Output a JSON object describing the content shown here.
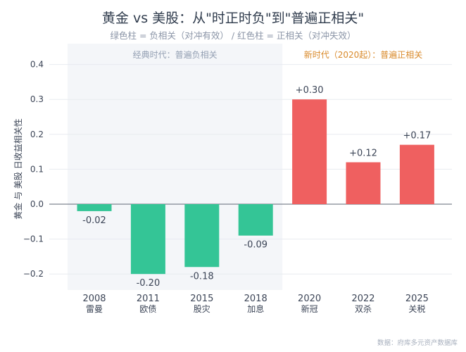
{
  "chart_data": {
    "type": "bar",
    "title": "黄金 vs 美股：从\"时正时负\"到\"普遍正相关\"",
    "subtitle": "绿色柱 = 负相关（对冲有效） / 红色柱 = 正相关（对冲失效）",
    "ylabel": "黄金 与 美股 日收益相关性",
    "categories": [
      "2008",
      "2011",
      "2015",
      "2018",
      "2020",
      "2022",
      "2025"
    ],
    "category_sublabels": [
      "雷曼",
      "欧债",
      "股灾",
      "加息",
      "新冠",
      "双杀",
      "关税"
    ],
    "values": [
      -0.02,
      -0.2,
      -0.18,
      -0.09,
      0.3,
      0.12,
      0.17
    ],
    "data_labels": [
      "-0.02",
      "-0.20",
      "-0.18",
      "-0.09",
      "+0.30",
      "+0.12",
      "+0.17"
    ],
    "ylim": [
      -0.25,
      0.45
    ],
    "yticks": [
      -0.2,
      -0.1,
      0.0,
      0.1,
      0.2,
      0.3,
      0.4
    ],
    "ytick_labels": [
      "−0.2",
      "−0.1",
      "0.0",
      "0.1",
      "0.2",
      "0.3",
      "0.4"
    ],
    "grid": true,
    "regions": [
      {
        "label": "经典时代：普遍负相关",
        "from_index": 0,
        "to_index": 3,
        "shaded": true
      },
      {
        "label": "新时代（2020起）：普遍正相关",
        "from_index": 4,
        "to_index": 6,
        "shaded": false
      }
    ],
    "colors": {
      "negative": "#34c596",
      "positive": "#ef6060",
      "region_shade": "#f4f6f9",
      "region_new_text": "#d98a2b"
    }
  },
  "source": "数据：府库多元资产数据库"
}
